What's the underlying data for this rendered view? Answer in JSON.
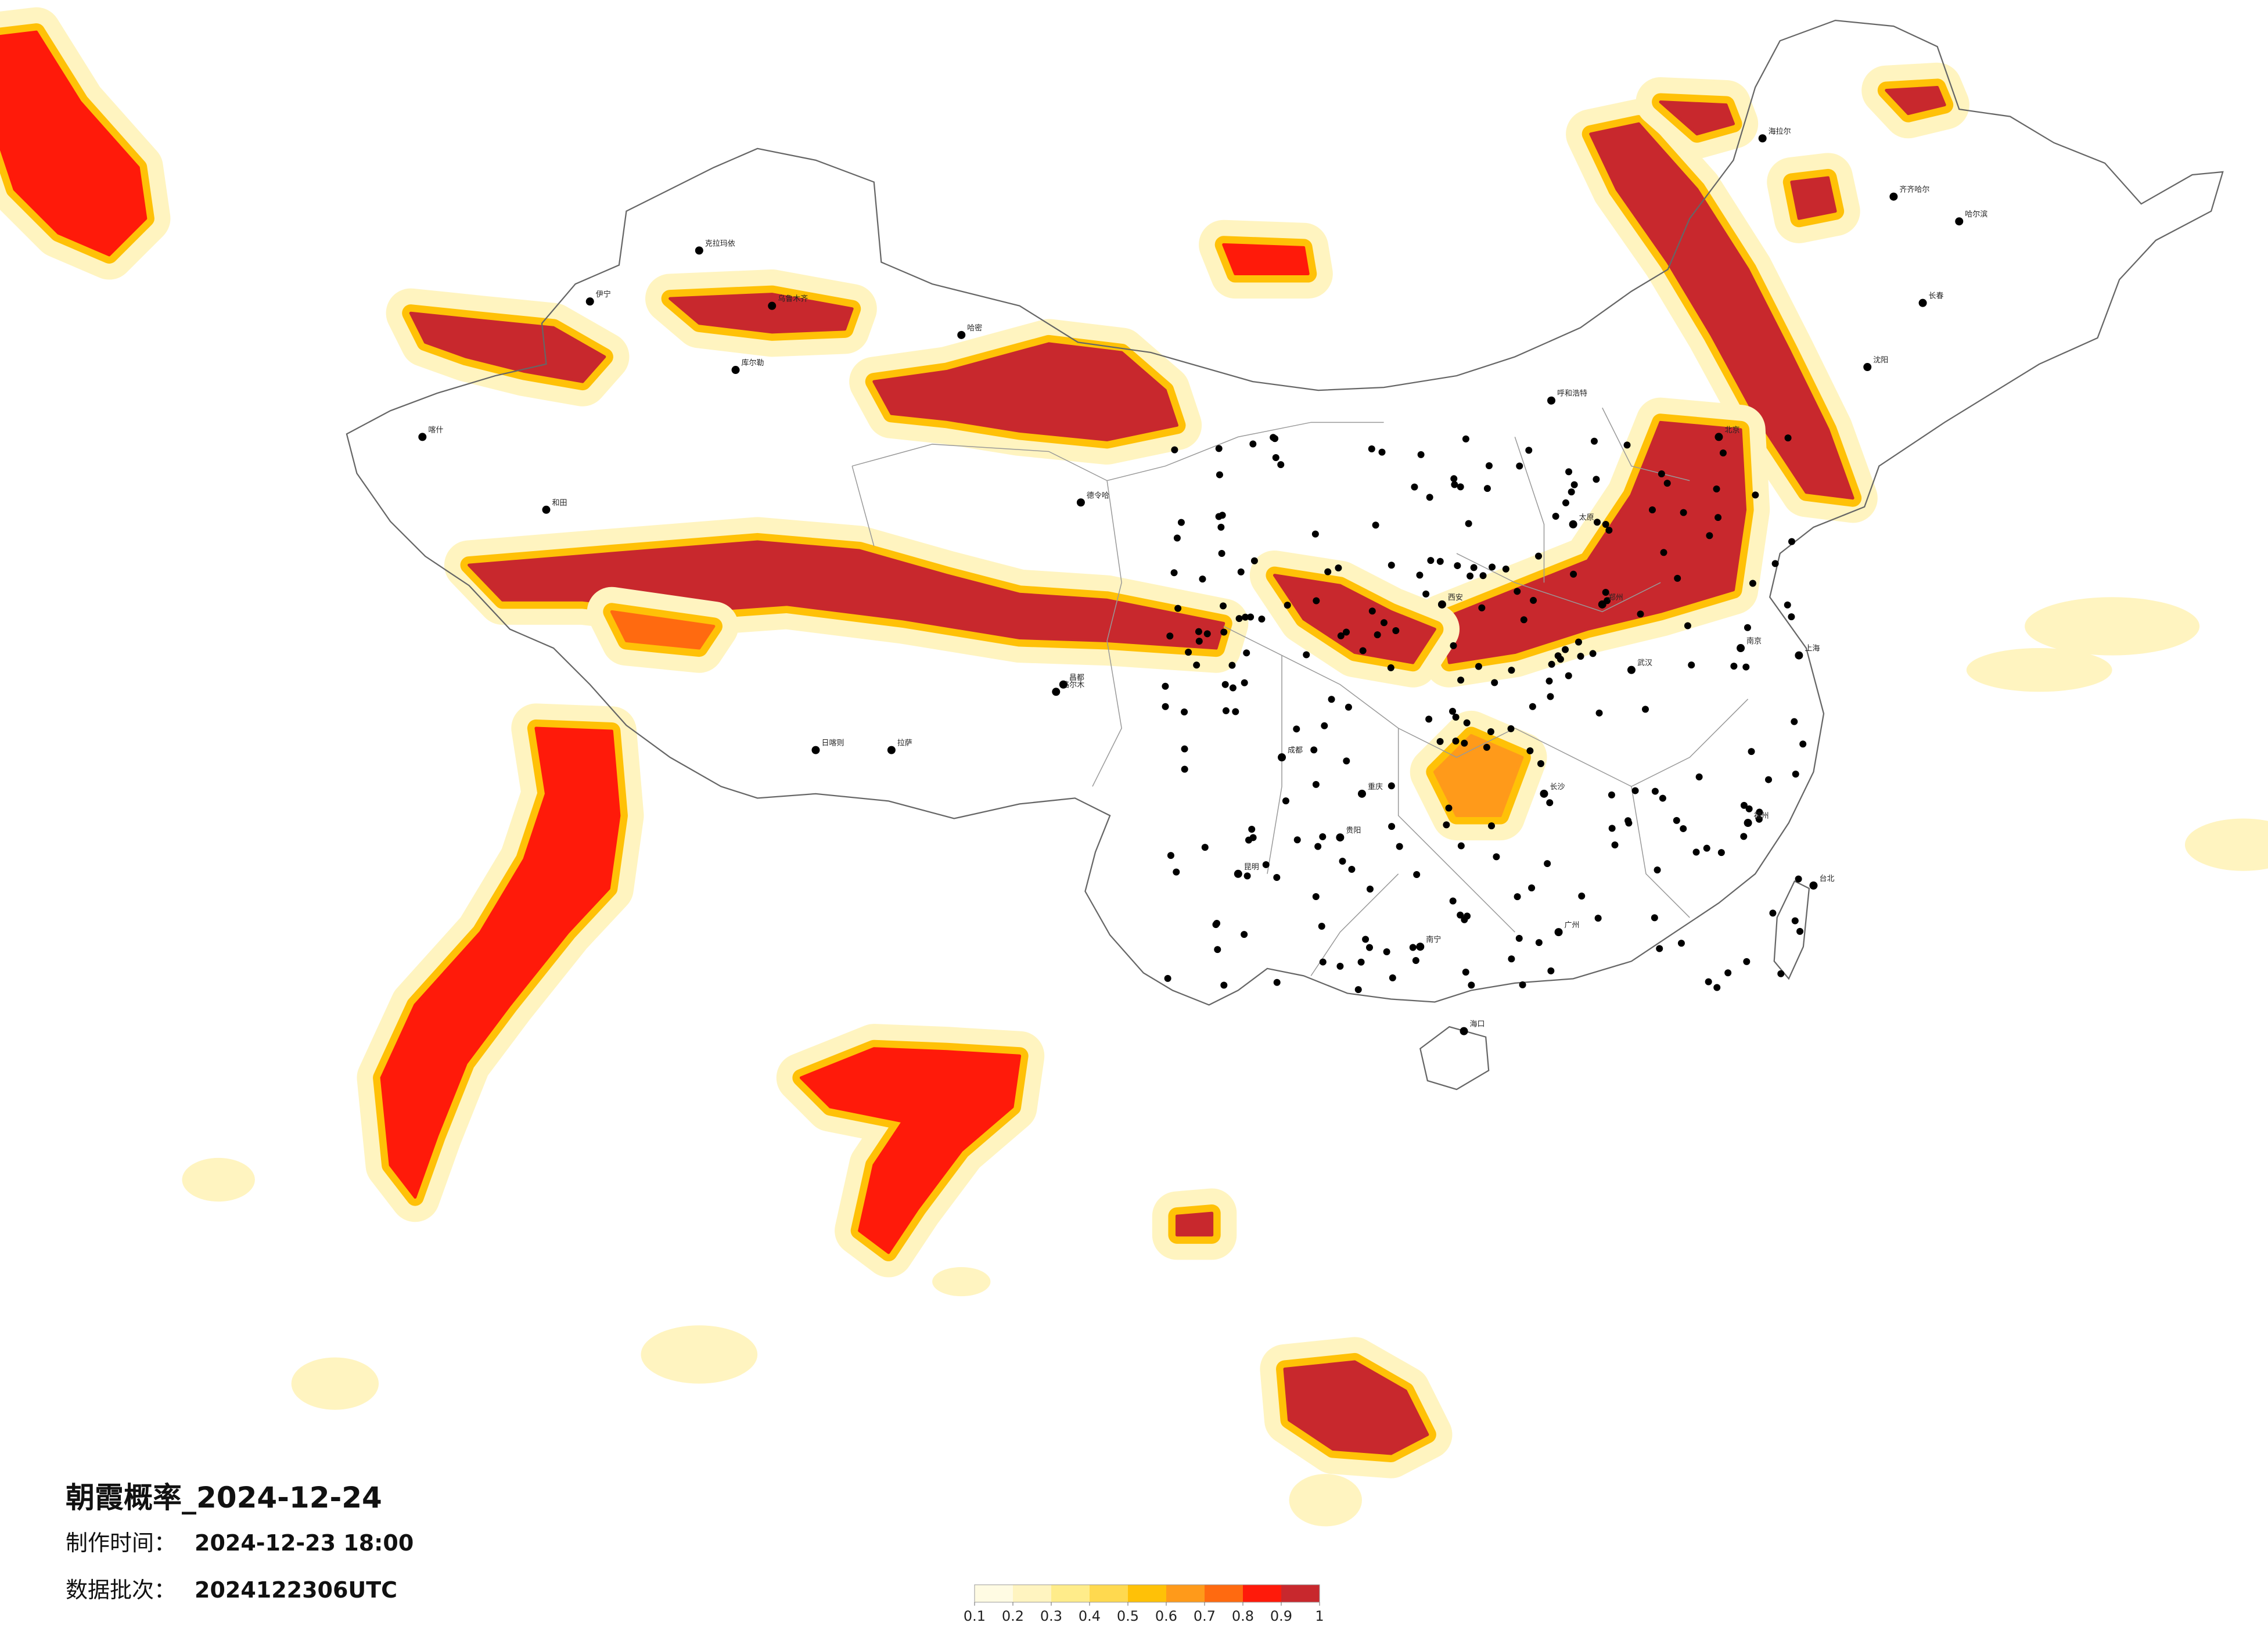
{
  "header": {
    "title": "朝霞概率_2024-12-24",
    "made_label": "制作时间：",
    "made_time": "2024-12-23 18:00",
    "batch_label": "数据批次：",
    "batch": "2024122306UTC"
  },
  "colorbar": {
    "colors": [
      "#fffbe3",
      "#fff4c0",
      "#ffec8a",
      "#ffd94f",
      "#ffc107",
      "#ff9a1a",
      "#ff6a10",
      "#ff1a0a",
      "#c8282d"
    ],
    "ticks": [
      0.1,
      0.2,
      0.3,
      0.4,
      0.5,
      0.6,
      0.7,
      0.8,
      0.9,
      1
    ]
  },
  "cities": [
    "克拉玛依",
    "伊宁",
    "乌鲁木齐",
    "库尔勒",
    "喀什",
    "和田",
    "哈密",
    "德令哈",
    "格尔木",
    "日喀则",
    "拉萨",
    "昌都",
    "海拉尔",
    "齐齐哈尔",
    "哈尔滨",
    "长春",
    "沈阳",
    "呼和浩特",
    "北京",
    "太原",
    "西安",
    "郑州",
    "成都",
    "重庆",
    "昆明",
    "贵阳",
    "长沙",
    "武汉",
    "南京",
    "上海",
    "福州",
    "广州",
    "南宁",
    "海口",
    "台北"
  ]
}
